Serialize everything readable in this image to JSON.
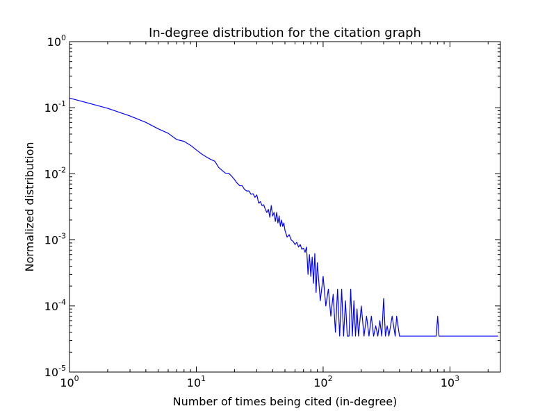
{
  "chart_data": {
    "type": "line",
    "title": "In-degree distribution for the citation graph",
    "xlabel": "Number of times being cited (in-degree)",
    "ylabel": "Normalized distribution",
    "xscale": "log",
    "yscale": "log",
    "xlim": [
      1,
      2500
    ],
    "ylim": [
      1e-05,
      1
    ],
    "grid": false,
    "line_color": "#0000ff",
    "x_ticks": [
      {
        "base": "10",
        "exp": "0"
      },
      {
        "base": "10",
        "exp": "1"
      },
      {
        "base": "10",
        "exp": "2"
      },
      {
        "base": "10",
        "exp": "3"
      }
    ],
    "y_ticks": [
      {
        "base": "10",
        "exp": "-5"
      },
      {
        "base": "10",
        "exp": "-4"
      },
      {
        "base": "10",
        "exp": "-3"
      },
      {
        "base": "10",
        "exp": "-2"
      },
      {
        "base": "10",
        "exp": "-1"
      },
      {
        "base": "10",
        "exp": "0"
      }
    ],
    "series": [
      {
        "x": [
          1,
          2,
          3,
          4,
          5,
          6,
          7,
          8,
          9,
          10,
          11,
          12,
          13,
          14,
          15,
          16,
          17,
          18,
          19,
          20,
          21,
          22,
          23,
          24,
          25,
          26,
          27,
          28,
          29,
          30,
          31,
          32,
          33,
          34,
          35,
          36,
          37,
          38,
          39,
          40,
          41,
          42,
          43,
          44,
          45,
          46,
          47,
          48,
          49,
          50,
          52,
          54,
          56,
          58,
          60,
          62,
          64,
          66,
          68,
          70,
          72,
          74,
          76,
          78,
          80,
          82,
          84,
          86,
          88,
          90,
          95,
          100,
          105,
          110,
          115,
          120,
          125,
          130,
          135,
          140,
          145,
          150,
          155,
          160,
          165,
          170,
          175,
          180,
          185,
          190,
          200,
          210,
          220,
          230,
          240,
          250,
          260,
          270,
          280,
          290,
          300,
          310,
          320,
          330,
          350,
          370,
          380,
          400,
          450,
          500,
          600,
          700,
          780,
          800,
          820,
          900,
          1000,
          1500,
          2000,
          2400
        ],
        "y": [
          0.14,
          0.098,
          0.075,
          0.06,
          0.048,
          0.041,
          0.033,
          0.031,
          0.027,
          0.023,
          0.02,
          0.018,
          0.0165,
          0.0155,
          0.0125,
          0.0112,
          0.0102,
          0.0102,
          0.0092,
          0.0082,
          0.0072,
          0.0066,
          0.0066,
          0.0058,
          0.0055,
          0.0055,
          0.0049,
          0.005,
          0.0044,
          0.0048,
          0.0036,
          0.0038,
          0.0033,
          0.0034,
          0.0029,
          0.0026,
          0.0029,
          0.0022,
          0.0033,
          0.0023,
          0.0026,
          0.0019,
          0.0026,
          0.0018,
          0.0023,
          0.0016,
          0.002,
          0.0016,
          0.0018,
          0.0014,
          0.0011,
          0.0012,
          0.001,
          0.00095,
          0.00085,
          0.00092,
          0.00078,
          0.00085,
          0.00072,
          0.00075,
          0.00065,
          0.00078,
          0.0003,
          0.0006,
          0.00028,
          0.00055,
          0.00022,
          0.00062,
          0.00016,
          0.00045,
          0.00012,
          0.00028,
          0.0001,
          0.00018,
          7e-05,
          0.00015,
          4e-05,
          0.00018,
          3.5e-05,
          0.00018,
          3.5e-05,
          0.00012,
          3.5e-05,
          3.5e-05,
          0.00018,
          3.5e-05,
          0.00012,
          3.5e-05,
          9e-05,
          3.5e-05,
          0.0001,
          3.5e-05,
          7e-05,
          3.5e-05,
          7e-05,
          3.5e-05,
          5e-05,
          3.5e-05,
          6e-05,
          3.5e-05,
          0.00013,
          3.5e-05,
          5e-05,
          3.5e-05,
          7e-05,
          3.5e-05,
          7e-05,
          3.5e-05,
          3.5e-05,
          3.5e-05,
          3.5e-05,
          3.5e-05,
          3.5e-05,
          7e-05,
          3.5e-05,
          3.5e-05,
          3.5e-05,
          3.5e-05,
          3.5e-05,
          3.5e-05
        ]
      }
    ]
  }
}
